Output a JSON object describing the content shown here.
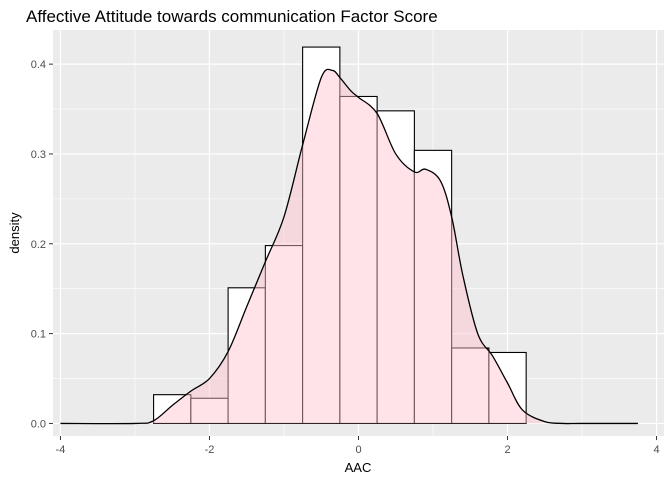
{
  "chart_data": {
    "type": "histogram-density",
    "title": "Affective Attitude towards communication Factor Score",
    "xlabel": "AAC",
    "ylabel": "density",
    "xlim": [
      -4.1,
      4.1
    ],
    "ylim": [
      -0.014,
      0.438
    ],
    "x_ticks": [
      -4,
      -2,
      0,
      2,
      4
    ],
    "y_ticks": [
      0.0,
      0.1,
      0.2,
      0.3,
      0.4
    ],
    "x_tick_labels": [
      "-4",
      "-2",
      "0",
      "2",
      "4"
    ],
    "y_tick_labels": [
      "0.0",
      "0.1",
      "0.2",
      "0.3",
      "0.4"
    ],
    "grid": true,
    "panel_background": "#ebebeb",
    "grid_color": "#ffffff",
    "histogram": {
      "bin_width": 0.5,
      "fill": "#ffffff",
      "stroke": "#000000",
      "bins": [
        {
          "x0": -2.75,
          "x1": -2.25,
          "density": 0.032
        },
        {
          "x0": -2.25,
          "x1": -1.75,
          "density": 0.028
        },
        {
          "x0": -1.75,
          "x1": -1.25,
          "density": 0.151
        },
        {
          "x0": -1.25,
          "x1": -0.75,
          "density": 0.198
        },
        {
          "x0": -0.75,
          "x1": -0.25,
          "density": 0.419
        },
        {
          "x0": -0.25,
          "x1": 0.25,
          "density": 0.364
        },
        {
          "x0": 0.25,
          "x1": 0.75,
          "density": 0.348
        },
        {
          "x0": 0.75,
          "x1": 1.25,
          "density": 0.304
        },
        {
          "x0": 1.25,
          "x1": 1.75,
          "density": 0.084
        },
        {
          "x0": 1.75,
          "x1": 2.25,
          "density": 0.079
        }
      ]
    },
    "density_curve": {
      "fill": "#ffc0cb",
      "fill_opacity": 0.45,
      "stroke": "#000000",
      "x": [
        -4.0,
        -3.0,
        -2.75,
        -2.5,
        -2.25,
        -2.0,
        -1.75,
        -1.5,
        -1.25,
        -1.0,
        -0.75,
        -0.5,
        -0.35,
        -0.25,
        -0.1,
        0.0,
        0.25,
        0.5,
        0.75,
        0.9,
        1.1,
        1.25,
        1.4,
        1.6,
        1.8,
        2.0,
        2.2,
        2.5,
        2.75,
        3.0,
        3.75
      ],
      "y": [
        0.0,
        0.0,
        0.003,
        0.02,
        0.036,
        0.05,
        0.08,
        0.13,
        0.18,
        0.23,
        0.31,
        0.385,
        0.393,
        0.385,
        0.37,
        0.363,
        0.345,
        0.3,
        0.28,
        0.283,
        0.27,
        0.23,
        0.165,
        0.1,
        0.075,
        0.045,
        0.015,
        0.002,
        0.0,
        0.0,
        0.0
      ]
    }
  }
}
